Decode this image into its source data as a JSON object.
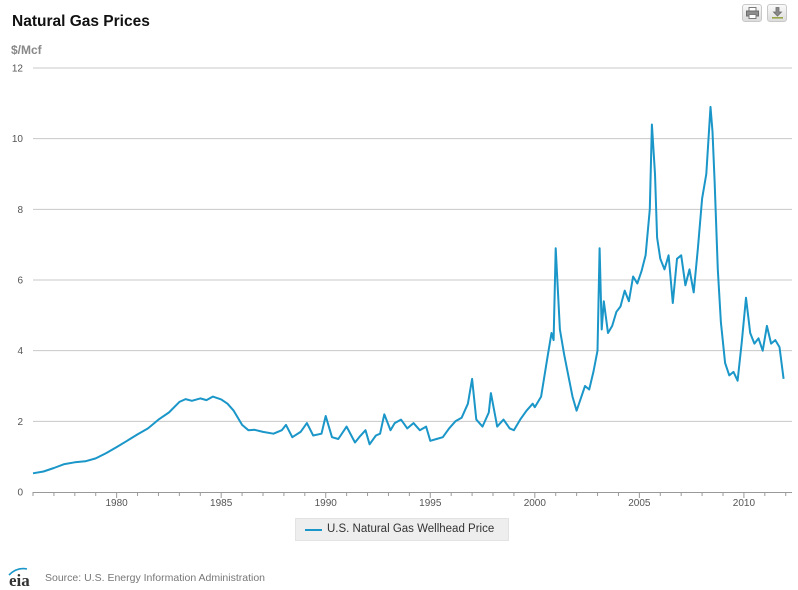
{
  "header": {
    "title": "Natural Gas Prices",
    "print_icon": "print-icon",
    "download_icon": "download-icon"
  },
  "footer": {
    "logo_text": "eia",
    "source": "Source: U.S. Energy Information Administration"
  },
  "colors": {
    "series_line": "#1a96c8",
    "grid": "#c8c8c8"
  },
  "chart_data": {
    "type": "line",
    "title": "Natural Gas Prices",
    "ylabel": "$/Mcf",
    "xlabel": "",
    "xlim": [
      1976,
      2012.3
    ],
    "ylim": [
      0,
      12
    ],
    "yticks": [
      0,
      2,
      4,
      6,
      8,
      10,
      12
    ],
    "xticks": [
      1980,
      1985,
      1990,
      1995,
      2000,
      2005,
      2010
    ],
    "grid": "horizontal",
    "legend_position": "bottom",
    "series": [
      {
        "name": "U.S. Natural Gas Wellhead Price",
        "x": [
          1976.0,
          1976.5,
          1977.0,
          1977.5,
          1978.0,
          1978.5,
          1979.0,
          1979.5,
          1980.0,
          1980.5,
          1981.0,
          1981.5,
          1982.0,
          1982.5,
          1983.0,
          1983.3,
          1983.6,
          1984.0,
          1984.3,
          1984.6,
          1985.0,
          1985.3,
          1985.6,
          1986.0,
          1986.3,
          1986.6,
          1987.0,
          1987.5,
          1987.9,
          1988.1,
          1988.4,
          1988.8,
          1989.1,
          1989.4,
          1989.8,
          1990.0,
          1990.3,
          1990.6,
          1991.0,
          1991.4,
          1991.6,
          1991.9,
          1992.1,
          1992.4,
          1992.6,
          1992.8,
          1993.1,
          1993.3,
          1993.6,
          1993.9,
          1994.2,
          1994.5,
          1994.8,
          1995.0,
          1995.3,
          1995.6,
          1995.9,
          1996.2,
          1996.5,
          1996.8,
          1997.0,
          1997.2,
          1997.5,
          1997.8,
          1997.9,
          1998.2,
          1998.5,
          1998.8,
          1999.0,
          1999.3,
          1999.6,
          1999.9,
          2000.0,
          2000.3,
          2000.6,
          2000.8,
          2000.9,
          2001.0,
          2001.2,
          2001.4,
          2001.6,
          2001.8,
          2002.0,
          2002.2,
          2002.4,
          2002.6,
          2002.8,
          2003.0,
          2003.1,
          2003.2,
          2003.3,
          2003.5,
          2003.7,
          2003.9,
          2004.1,
          2004.3,
          2004.5,
          2004.7,
          2004.9,
          2005.1,
          2005.3,
          2005.5,
          2005.6,
          2005.75,
          2005.85,
          2006.0,
          2006.2,
          2006.4,
          2006.6,
          2006.8,
          2007.0,
          2007.2,
          2007.4,
          2007.6,
          2007.8,
          2008.0,
          2008.2,
          2008.4,
          2008.5,
          2008.6,
          2008.75,
          2008.9,
          2009.1,
          2009.3,
          2009.5,
          2009.7,
          2009.9,
          2010.1,
          2010.3,
          2010.5,
          2010.7,
          2010.9,
          2011.1,
          2011.3,
          2011.5,
          2011.7,
          2011.9
        ],
        "values": [
          0.53,
          0.58,
          0.68,
          0.79,
          0.84,
          0.87,
          0.95,
          1.1,
          1.27,
          1.45,
          1.63,
          1.8,
          2.05,
          2.25,
          2.55,
          2.63,
          2.58,
          2.65,
          2.6,
          2.7,
          2.62,
          2.5,
          2.3,
          1.9,
          1.75,
          1.76,
          1.7,
          1.65,
          1.75,
          1.9,
          1.55,
          1.7,
          1.95,
          1.6,
          1.65,
          2.15,
          1.55,
          1.5,
          1.85,
          1.4,
          1.55,
          1.75,
          1.35,
          1.6,
          1.65,
          2.2,
          1.75,
          1.95,
          2.05,
          1.8,
          1.95,
          1.75,
          1.85,
          1.45,
          1.5,
          1.55,
          1.8,
          2.0,
          2.1,
          2.5,
          3.2,
          2.05,
          1.85,
          2.25,
          2.8,
          1.85,
          2.05,
          1.8,
          1.75,
          2.05,
          2.3,
          2.5,
          2.4,
          2.7,
          3.8,
          4.5,
          4.3,
          6.9,
          4.6,
          3.9,
          3.3,
          2.7,
          2.3,
          2.65,
          3.0,
          2.9,
          3.4,
          4.0,
          6.9,
          4.6,
          5.4,
          4.5,
          4.7,
          5.1,
          5.25,
          5.7,
          5.4,
          6.1,
          5.9,
          6.25,
          6.7,
          8.0,
          10.4,
          9.0,
          7.2,
          6.6,
          6.3,
          6.7,
          5.35,
          6.6,
          6.7,
          5.85,
          6.3,
          5.65,
          6.9,
          8.3,
          9.0,
          10.9,
          10.2,
          8.8,
          6.3,
          4.8,
          3.65,
          3.3,
          3.4,
          3.15,
          4.25,
          5.5,
          4.5,
          4.2,
          4.35,
          4.0,
          4.7,
          4.2,
          4.3,
          4.1,
          3.2
        ]
      }
    ]
  }
}
